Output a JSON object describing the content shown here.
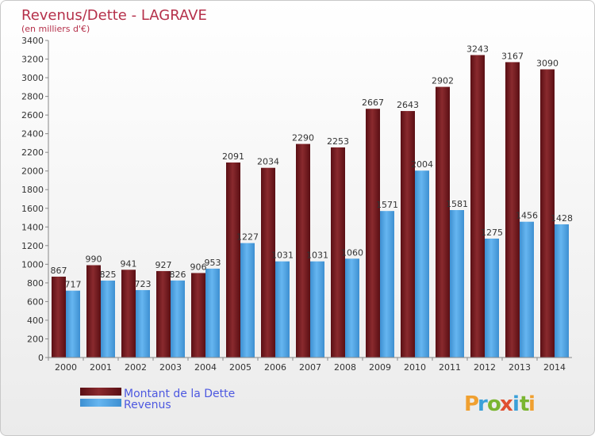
{
  "chart_data": {
    "type": "bar",
    "title": "Revenus/Dette - LAGRAVE",
    "subtitle": "(en milliers d'€)",
    "categories": [
      "2000",
      "2001",
      "2002",
      "2003",
      "2004",
      "2005",
      "2006",
      "2007",
      "2008",
      "2009",
      "2010",
      "2011",
      "2012",
      "2013",
      "2014"
    ],
    "series": [
      {
        "name": "Montant de la Dette",
        "color": "#7a1e22",
        "values": [
          867,
          990,
          941,
          927,
          906,
          2091,
          2034,
          2290,
          2253,
          2667,
          2643,
          2902,
          3243,
          3167,
          3090
        ]
      },
      {
        "name": "Revenus",
        "color": "#4fa6e6",
        "values": [
          717,
          825,
          723,
          826,
          953,
          1227,
          1031,
          1031,
          1060,
          1571,
          2004,
          1581,
          1275,
          1456,
          1428
        ]
      }
    ],
    "ylim": [
      0,
      3400
    ],
    "yticks": [
      0,
      200,
      400,
      600,
      800,
      1000,
      1200,
      1400,
      1600,
      1800,
      2000,
      2200,
      2400,
      2600,
      2800,
      3000,
      3200,
      3400
    ],
    "grid": false,
    "legend_position": "bottom-left"
  },
  "brand": {
    "logo_letters": [
      "P",
      "r",
      "o",
      "x",
      "i",
      "t",
      "i"
    ],
    "logo_colors": [
      "#f0a030",
      "#3aa0d8",
      "#7ab530",
      "#e05030",
      "#3aa0d8",
      "#7ab530",
      "#f0a030"
    ]
  }
}
